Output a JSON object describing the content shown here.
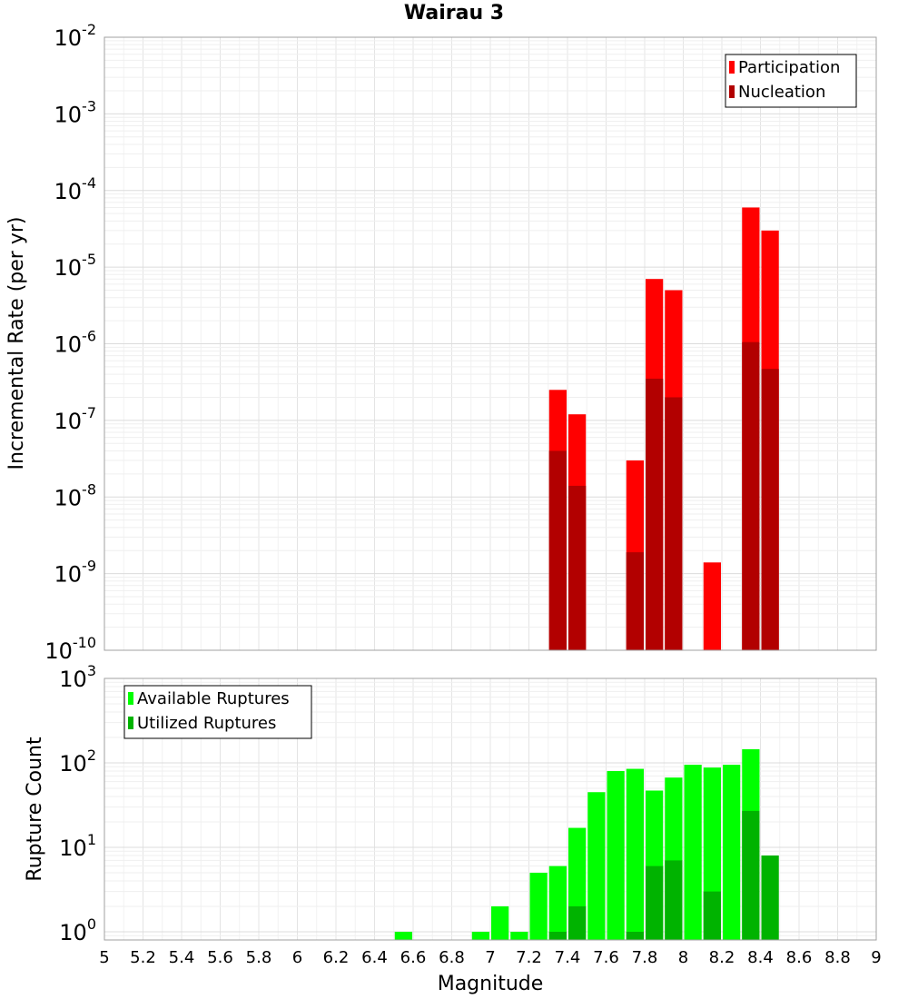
{
  "chart_data": [
    {
      "type": "bar",
      "panel": "top",
      "title": "Wairau 3",
      "xlabel": "",
      "ylabel": "Incremental Rate (per yr)",
      "yscale": "log",
      "ylim": [
        1e-10,
        0.01
      ],
      "xlim": [
        5,
        9
      ],
      "ytick_exponents": [
        "-10",
        "-9",
        "-8",
        "-7",
        "-6",
        "-5",
        "-4",
        "-3",
        "-2"
      ],
      "ytick_base": "10",
      "grid": true,
      "legend_placement": "top-right",
      "series": [
        {
          "name": "Participation",
          "color": "#ff0000",
          "x": [
            7.35,
            7.45,
            7.75,
            7.85,
            7.95,
            8.15,
            8.35,
            8.45
          ],
          "values": [
            2.5e-07,
            1.2e-07,
            3e-08,
            7e-06,
            5e-06,
            1.4e-09,
            6e-05,
            3e-05
          ]
        },
        {
          "name": "Nucleation",
          "color": "#b20000",
          "x": [
            7.35,
            7.45,
            7.75,
            7.85,
            7.95,
            8.35,
            8.45
          ],
          "values": [
            4e-08,
            1.4e-08,
            1.9e-09,
            3.5e-07,
            2e-07,
            1.05e-06,
            4.7e-07
          ]
        }
      ]
    },
    {
      "type": "bar",
      "panel": "bottom",
      "title": "",
      "xlabel": "Magnitude",
      "ylabel": "Rupture Count",
      "yscale": "log",
      "ylim": [
        0.8,
        1000
      ],
      "xlim": [
        5,
        9
      ],
      "ytick_exponents": [
        "0",
        "1",
        "2",
        "3"
      ],
      "ytick_base": "10",
      "xticks": [
        "5",
        "5.2",
        "5.4",
        "5.6",
        "5.8",
        "6",
        "6.2",
        "6.4",
        "6.6",
        "6.8",
        "7",
        "7.2",
        "7.4",
        "7.6",
        "7.8",
        "8",
        "8.2",
        "8.4",
        "8.6",
        "8.8",
        "9"
      ],
      "grid": true,
      "legend_placement": "top-left",
      "series": [
        {
          "name": "Available Ruptures",
          "color": "#00ff00",
          "x": [
            6.55,
            6.95,
            7.05,
            7.15,
            7.25,
            7.35,
            7.45,
            7.55,
            7.65,
            7.75,
            7.85,
            7.95,
            8.05,
            8.15,
            8.25,
            8.35
          ],
          "values": [
            1,
            1,
            2,
            1,
            5,
            6,
            17,
            45,
            80,
            85,
            47,
            67,
            95,
            88,
            95,
            145
          ]
        },
        {
          "name": "Utilized Ruptures",
          "color": "#00b300",
          "x": [
            7.35,
            7.45,
            7.75,
            7.85,
            7.95,
            8.15,
            8.35,
            8.45
          ],
          "values": [
            1,
            2,
            1,
            6,
            7,
            3,
            27,
            8
          ]
        }
      ]
    }
  ]
}
